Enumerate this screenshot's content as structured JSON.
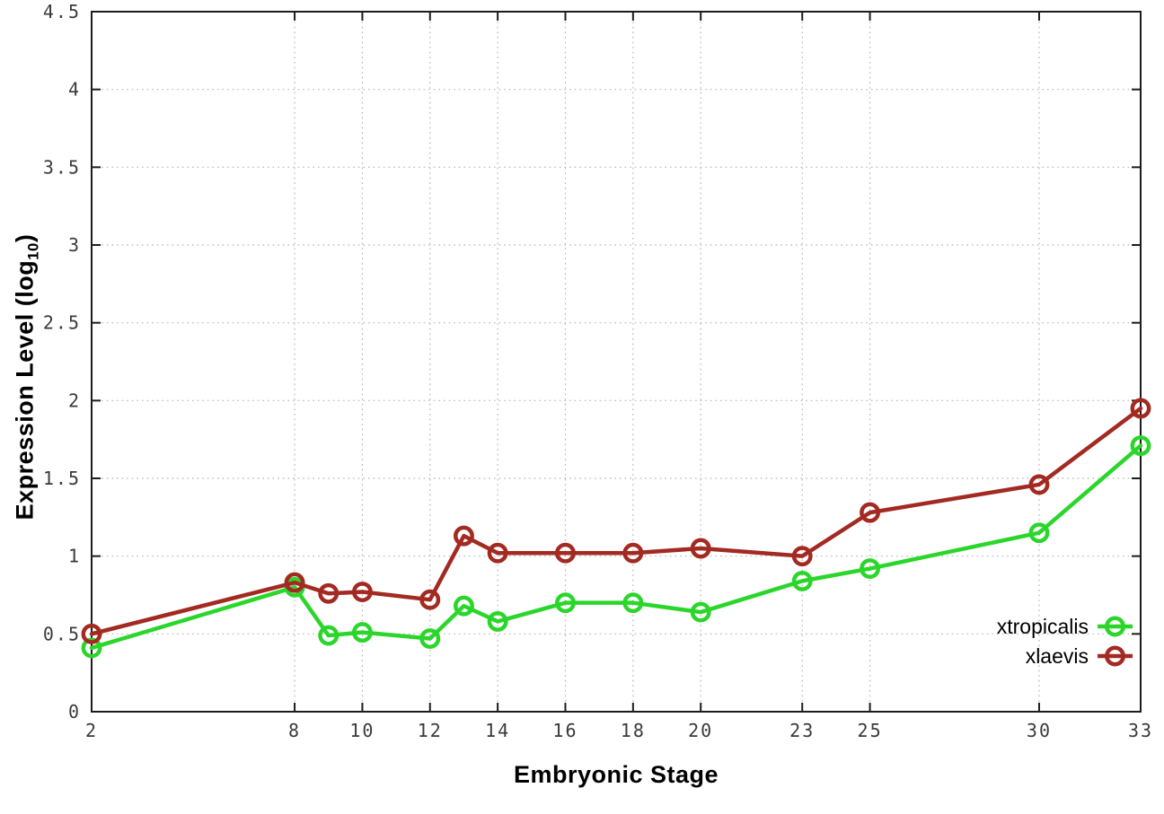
{
  "background": "#ffffff",
  "chart_data": {
    "type": "line",
    "title": "",
    "xlabel": "Embryonic Stage",
    "ylabel": "Expression Level (log10)",
    "ylabel_parts": {
      "prefix": "Expression Level (log",
      "subscript": "10",
      "suffix": ")"
    },
    "xlim": [
      2,
      33
    ],
    "ylim": [
      0,
      4.5
    ],
    "xticks": [
      2,
      8,
      10,
      12,
      14,
      16,
      18,
      20,
      23,
      25,
      30,
      33
    ],
    "yticks": [
      0,
      0.5,
      1,
      1.5,
      2,
      2.5,
      3,
      3.5,
      4,
      4.5
    ],
    "grid": true,
    "grid_style": "dotted",
    "legend_position": "bottom-right-inside",
    "marker": "open-circle",
    "x": [
      2,
      8,
      9,
      10,
      12,
      13,
      14,
      16,
      18,
      20,
      23,
      25,
      30,
      33
    ],
    "series": [
      {
        "name": "xtropicalis",
        "color": "#2BD62B",
        "values": [
          0.41,
          0.8,
          0.49,
          0.51,
          0.47,
          0.68,
          0.58,
          0.7,
          0.7,
          0.64,
          0.84,
          0.92,
          1.15,
          1.71
        ]
      },
      {
        "name": "xlaevis",
        "color": "#A32A22",
        "values": [
          0.5,
          0.83,
          0.76,
          0.77,
          0.72,
          1.13,
          1.02,
          1.02,
          1.02,
          1.05,
          1.0,
          1.28,
          1.46,
          1.95
        ]
      }
    ],
    "colors": {
      "axis": "#1c1c1c",
      "grid": "#b5b5b5",
      "tick_label": "#3a3a3a",
      "legend_text": "#000000"
    }
  }
}
